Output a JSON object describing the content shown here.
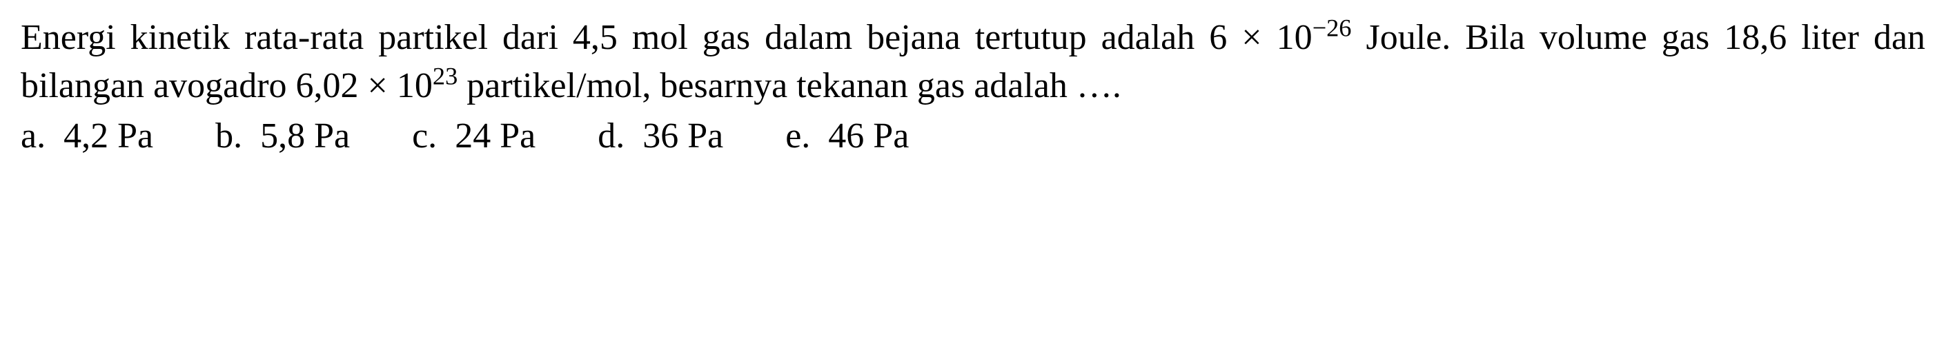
{
  "question": {
    "line1_part1": "Energi kinetik rata-rata partikel dari 4,5 mol gas dalam bejana tertutup",
    "line2_prefix": "adalah 6 × 10",
    "line2_exp1": "−26",
    "line2_mid": " Joule. Bila volume gas 18,6 liter dan bilangan",
    "line3_prefix": "avogadro 6,02 × 10",
    "line3_exp": "23",
    "line3_suffix": " partikel/mol, besarnya tekanan gas adalah ….",
    "fontsize": 52,
    "text_color": "#000000",
    "background_color": "#ffffff"
  },
  "options": {
    "a": {
      "letter": "a.",
      "value": "4,2 Pa"
    },
    "b": {
      "letter": "b.",
      "value": "5,8 Pa"
    },
    "c": {
      "letter": "c.",
      "value": "24 Pa"
    },
    "d": {
      "letter": "d.",
      "value": "36 Pa"
    },
    "e": {
      "letter": "e.",
      "value": "46 Pa"
    }
  }
}
